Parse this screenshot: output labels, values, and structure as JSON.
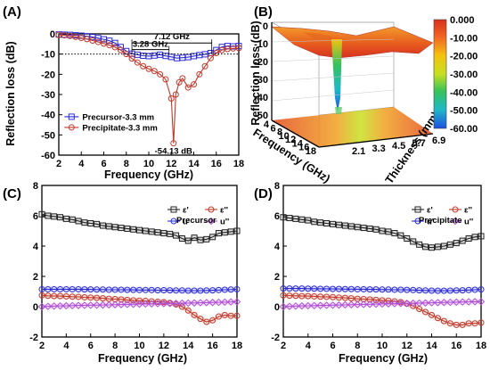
{
  "chart_data": [
    {
      "panel": "(A)",
      "type": "line",
      "xlabel": "Frequency (GHz)",
      "ylabel": "Reflection loss (dB)",
      "xlim": [
        2,
        18
      ],
      "ylim": [
        -60,
        0
      ],
      "xticks": [
        2,
        4,
        6,
        8,
        10,
        12,
        14,
        16,
        18
      ],
      "yticks": [
        0,
        -10,
        -20,
        -30,
        -40,
        -50,
        -60
      ],
      "legend_position": "bottom-left",
      "reference_line": {
        "y": -10,
        "style": "dotted"
      },
      "series": [
        {
          "name": "Precursor-3.3 mm",
          "color": "#2b2bd6",
          "marker": "square",
          "x": [
            2,
            2.5,
            3,
            3.5,
            4,
            4.5,
            5,
            5.5,
            6,
            6.5,
            7,
            7.5,
            8,
            8.5,
            9,
            9.5,
            10,
            10.5,
            11,
            11.5,
            12,
            12.5,
            13,
            13.5,
            14,
            14.5,
            15,
            15.5,
            16,
            16.5,
            17,
            17.5,
            18
          ],
          "values": [
            -0.3,
            -0.4,
            -0.5,
            -0.7,
            -0.9,
            -1.2,
            -1.6,
            -2.1,
            -2.7,
            -3.4,
            -4.5,
            -6.5,
            -8.5,
            -9.8,
            -10.3,
            -10.8,
            -11.0,
            -10.7,
            -10.3,
            -10.9,
            -11.4,
            -12.0,
            -11.8,
            -11.5,
            -11.0,
            -10.5,
            -10.1,
            -9.5,
            -8.0,
            -6.5,
            -6.0,
            -6.2,
            -6.0
          ]
        },
        {
          "name": "Precipitate-3.3 mm",
          "color": "#c0392b",
          "marker": "circle",
          "x": [
            2,
            2.5,
            3,
            3.5,
            4,
            4.5,
            5,
            5.5,
            6,
            6.5,
            7,
            7.5,
            8,
            8.5,
            9,
            9.5,
            10,
            10.5,
            11,
            11.5,
            12,
            12.2,
            12.4,
            12.7,
            13,
            13.5,
            14,
            14.5,
            15,
            15.5,
            16,
            16.5,
            17,
            17.5,
            18
          ],
          "values": [
            -0.5,
            -0.7,
            -1.0,
            -1.5,
            -2.0,
            -2.6,
            -3.3,
            -4.0,
            -4.8,
            -5.6,
            -6.6,
            -8.0,
            -10.0,
            -12.2,
            -14.2,
            -16.0,
            -17.3,
            -18.4,
            -20.0,
            -22.5,
            -32.0,
            -54.13,
            -30.0,
            -24.0,
            -22.0,
            -26.5,
            -25.0,
            -20.0,
            -16.0,
            -12.0,
            -9.5,
            -8.0,
            -7.5,
            -7.2,
            -7.0
          ]
        }
      ],
      "annotations": [
        {
          "text": "7.12 GHz",
          "span": [
            8.5,
            15.6
          ]
        },
        {
          "text": "3.28 GHz",
          "span": [
            8.5,
            11.8
          ]
        },
        {
          "text": "-54.13 dB",
          "x": 12.2,
          "y": -54.13
        }
      ]
    },
    {
      "panel": "(B)",
      "type": "surface",
      "zlabel": "Reflection loss (dB)",
      "xlabel": "Frequency (GHz)",
      "ylabel": "Thickness (mm)",
      "frequency_ticks": [
        4,
        6,
        8,
        10,
        12,
        14,
        16,
        18
      ],
      "thickness_ticks": [
        2.1,
        3.3,
        4.5,
        5.7,
        6.9
      ],
      "z_ticks": [
        0,
        -10,
        -20,
        -30,
        -40,
        -50
      ],
      "colorbar": {
        "ticks": [
          "0.000",
          "-10.00",
          "-20.00",
          "-30.00",
          "-40.00",
          "-50.00",
          "-60.00"
        ],
        "colors": [
          "#d7301f",
          "#f26522",
          "#f4c20d",
          "#c7e020",
          "#35c25a",
          "#1fb8c8",
          "#1e4fe0"
        ]
      }
    },
    {
      "panel": "(C)",
      "type": "line",
      "title": "Precursor",
      "xlabel": "Frequency (GHz)",
      "xlim": [
        2,
        18
      ],
      "ylim": [
        -2,
        8
      ],
      "xticks": [
        2,
        4,
        6,
        8,
        10,
        12,
        14,
        16,
        18
      ],
      "yticks": [
        -2,
        0,
        2,
        4,
        6,
        8
      ],
      "legend_position": "top-right",
      "x": [
        2,
        2.5,
        3,
        3.5,
        4,
        4.5,
        5,
        5.5,
        6,
        6.5,
        7,
        7.5,
        8,
        8.5,
        9,
        9.5,
        10,
        10.5,
        11,
        11.5,
        12,
        12.5,
        13,
        13.5,
        14,
        14.5,
        15,
        15.5,
        16,
        16.5,
        17,
        17.5,
        18
      ],
      "series": [
        {
          "name": "ε'",
          "color": "#222222",
          "marker": "square",
          "values": [
            6.1,
            6.0,
            5.95,
            5.9,
            5.8,
            5.75,
            5.65,
            5.55,
            5.5,
            5.45,
            5.35,
            5.3,
            5.25,
            5.2,
            5.15,
            5.1,
            5.05,
            5.0,
            4.95,
            4.9,
            4.85,
            4.8,
            4.7,
            4.5,
            4.35,
            4.55,
            4.4,
            4.45,
            4.6,
            4.85,
            4.9,
            4.95,
            5.0
          ]
        },
        {
          "name": "ε''",
          "color": "#c0392b",
          "marker": "circle",
          "values": [
            0.75,
            0.72,
            0.7,
            0.7,
            0.68,
            0.66,
            0.65,
            0.62,
            0.6,
            0.58,
            0.55,
            0.52,
            0.5,
            0.48,
            0.45,
            0.42,
            0.4,
            0.38,
            0.35,
            0.32,
            0.3,
            0.25,
            0.15,
            0.0,
            -0.25,
            -0.55,
            -0.8,
            -1.0,
            -0.9,
            -0.65,
            -0.55,
            -0.6,
            -0.6
          ]
        },
        {
          "name": "u'",
          "color": "#2b2bd6",
          "marker": "circle",
          "values": [
            1.15,
            1.15,
            1.15,
            1.15,
            1.15,
            1.15,
            1.15,
            1.14,
            1.14,
            1.13,
            1.13,
            1.12,
            1.12,
            1.12,
            1.11,
            1.11,
            1.1,
            1.1,
            1.1,
            1.09,
            1.09,
            1.08,
            1.07,
            1.07,
            1.06,
            1.06,
            1.06,
            1.07,
            1.08,
            1.1,
            1.12,
            1.13,
            1.15
          ]
        },
        {
          "name": "u''",
          "color": "#b04fd6",
          "marker": "diamond",
          "values": [
            0.0,
            0.02,
            0.04,
            0.05,
            0.06,
            0.07,
            0.08,
            0.09,
            0.1,
            0.1,
            0.11,
            0.12,
            0.13,
            0.14,
            0.15,
            0.16,
            0.17,
            0.18,
            0.19,
            0.2,
            0.2,
            0.21,
            0.22,
            0.23,
            0.24,
            0.25,
            0.26,
            0.27,
            0.28,
            0.29,
            0.3,
            0.31,
            0.32
          ]
        }
      ]
    },
    {
      "panel": "(D)",
      "type": "line",
      "title": "Precipitate",
      "xlabel": "Frequency (GHz)",
      "xlim": [
        2,
        18
      ],
      "ylim": [
        -2,
        8
      ],
      "xticks": [
        2,
        4,
        6,
        8,
        10,
        12,
        14,
        16,
        18
      ],
      "yticks": [
        -2,
        0,
        2,
        4,
        6,
        8
      ],
      "legend_position": "top-right",
      "x": [
        2,
        2.5,
        3,
        3.5,
        4,
        4.5,
        5,
        5.5,
        6,
        6.5,
        7,
        7.5,
        8,
        8.5,
        9,
        9.5,
        10,
        10.5,
        11,
        11.5,
        12,
        12.5,
        13,
        13.5,
        14,
        14.5,
        15,
        15.5,
        16,
        16.5,
        17,
        17.5,
        18
      ],
      "series": [
        {
          "name": "ε'",
          "color": "#222222",
          "marker": "square",
          "values": [
            5.9,
            5.85,
            5.8,
            5.75,
            5.7,
            5.6,
            5.55,
            5.5,
            5.45,
            5.4,
            5.35,
            5.3,
            5.25,
            5.2,
            5.15,
            5.1,
            5.0,
            4.95,
            4.85,
            4.7,
            4.5,
            4.3,
            4.1,
            3.95,
            3.9,
            3.95,
            4.0,
            4.1,
            4.2,
            4.35,
            4.5,
            4.6,
            4.65
          ]
        },
        {
          "name": "ε''",
          "color": "#c0392b",
          "marker": "circle",
          "values": [
            0.75,
            0.73,
            0.72,
            0.7,
            0.7,
            0.68,
            0.66,
            0.65,
            0.63,
            0.6,
            0.58,
            0.55,
            0.52,
            0.5,
            0.48,
            0.45,
            0.42,
            0.4,
            0.35,
            0.3,
            0.2,
            0.05,
            -0.15,
            -0.35,
            -0.55,
            -0.75,
            -0.95,
            -1.1,
            -1.2,
            -1.2,
            -1.1,
            -1.1,
            -1.05
          ]
        },
        {
          "name": "u'",
          "color": "#2b2bd6",
          "marker": "circle",
          "values": [
            1.2,
            1.2,
            1.2,
            1.2,
            1.19,
            1.19,
            1.18,
            1.18,
            1.17,
            1.17,
            1.16,
            1.16,
            1.15,
            1.15,
            1.14,
            1.14,
            1.13,
            1.13,
            1.12,
            1.12,
            1.11,
            1.1,
            1.08,
            1.07,
            1.06,
            1.05,
            1.05,
            1.06,
            1.07,
            1.08,
            1.1,
            1.12,
            1.14
          ]
        },
        {
          "name": "u''",
          "color": "#b04fd6",
          "marker": "diamond",
          "values": [
            0.0,
            0.02,
            0.04,
            0.05,
            0.06,
            0.07,
            0.08,
            0.09,
            0.1,
            0.11,
            0.12,
            0.13,
            0.14,
            0.15,
            0.16,
            0.17,
            0.18,
            0.19,
            0.2,
            0.21,
            0.22,
            0.23,
            0.24,
            0.25,
            0.26,
            0.27,
            0.28,
            0.29,
            0.3,
            0.31,
            0.32,
            0.33,
            0.33
          ]
        }
      ]
    }
  ]
}
